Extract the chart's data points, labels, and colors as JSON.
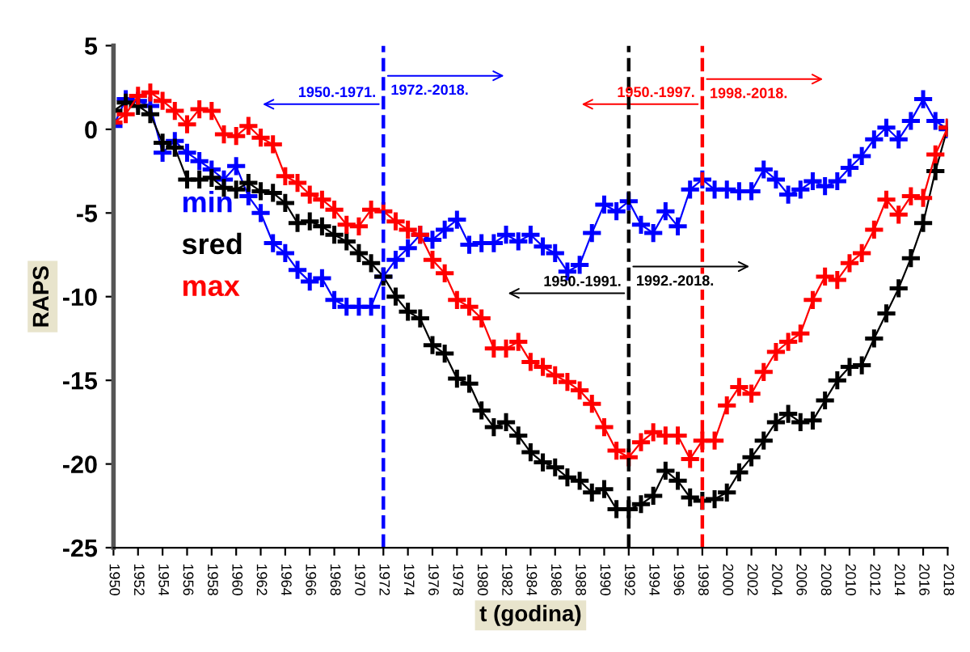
{
  "chart_data": {
    "type": "line",
    "xlabel": "t (godina)",
    "ylabel": "RAPS",
    "marker": "cross",
    "line_style": "solid",
    "legend": "center left",
    "grid": false,
    "xlim": [
      1950,
      2018
    ],
    "xticks": [
      1950,
      1952,
      1954,
      1956,
      1958,
      1960,
      1962,
      1964,
      1966,
      1968,
      1970,
      1972,
      1974,
      1976,
      1978,
      1980,
      1982,
      1984,
      1986,
      1988,
      1990,
      1992,
      1994,
      1996,
      1998,
      2000,
      2002,
      2004,
      2006,
      2008,
      2010,
      2012,
      2014,
      2016,
      2018
    ],
    "ylim": [
      -25,
      5
    ],
    "yticks": [
      -25,
      -20,
      -15,
      -10,
      -5,
      0,
      5
    ],
    "x": [
      1950,
      1951,
      1952,
      1953,
      1954,
      1955,
      1956,
      1957,
      1958,
      1959,
      1960,
      1961,
      1962,
      1963,
      1964,
      1965,
      1966,
      1967,
      1968,
      1969,
      1970,
      1971,
      1972,
      1973,
      1974,
      1975,
      1976,
      1977,
      1978,
      1979,
      1980,
      1981,
      1982,
      1983,
      1984,
      1985,
      1986,
      1987,
      1988,
      1989,
      1990,
      1991,
      1992,
      1993,
      1994,
      1995,
      1996,
      1997,
      1998,
      1999,
      2000,
      2001,
      2002,
      2003,
      2004,
      2005,
      2006,
      2007,
      2008,
      2009,
      2010,
      2011,
      2012,
      2013,
      2014,
      2015,
      2016,
      2017,
      2018
    ],
    "series": [
      {
        "name": "min",
        "color": "#0000ff",
        "values": [
          0.2,
          1.8,
          1.7,
          1.4,
          -1.4,
          -0.7,
          -1.4,
          -1.9,
          -2.4,
          -3.0,
          -2.2,
          -4.0,
          -5.0,
          -6.8,
          -7.4,
          -8.4,
          -9.1,
          -8.9,
          -10.2,
          -10.6,
          -10.6,
          -10.6,
          -8.8,
          -7.8,
          -7.1,
          -6.3,
          -6.6,
          -6.0,
          -5.4,
          -6.9,
          -6.8,
          -6.8,
          -6.3,
          -6.7,
          -6.3,
          -7.0,
          -7.4,
          -8.5,
          -8.1,
          -6.2,
          -4.5,
          -4.9,
          -4.3,
          -5.7,
          -6.2,
          -4.9,
          -5.8,
          -3.6,
          -3.0,
          -3.6,
          -3.6,
          -3.7,
          -3.7,
          -2.4,
          -3.0,
          -3.9,
          -3.6,
          -3.1,
          -3.4,
          -3.1,
          -2.3,
          -1.6,
          -0.6,
          0.1,
          -0.6,
          0.5,
          1.8,
          0.5,
          0.0
        ]
      },
      {
        "name": "sred",
        "color": "#000000",
        "values": [
          1.1,
          1.6,
          1.4,
          0.9,
          -0.8,
          -1.1,
          -3.0,
          -3.0,
          -2.9,
          -3.5,
          -3.6,
          -3.2,
          -3.7,
          -3.8,
          -4.4,
          -5.6,
          -5.5,
          -5.8,
          -6.3,
          -6.7,
          -7.4,
          -8.0,
          -8.8,
          -10.0,
          -10.9,
          -11.3,
          -12.9,
          -13.4,
          -14.9,
          -15.2,
          -16.8,
          -17.8,
          -17.5,
          -18.3,
          -19.3,
          -19.9,
          -20.2,
          -20.8,
          -21.0,
          -21.7,
          -21.5,
          -22.7,
          -22.7,
          -22.4,
          -21.9,
          -20.4,
          -21.0,
          -22.0,
          -22.2,
          -22.1,
          -21.7,
          -20.5,
          -19.6,
          -18.6,
          -17.5,
          -17.0,
          -17.5,
          -17.4,
          -16.2,
          -15.0,
          -14.2,
          -14.1,
          -12.5,
          -11.0,
          -9.5,
          -7.7,
          -5.6,
          -2.5,
          0.1
        ]
      },
      {
        "name": "max",
        "color": "#ff0000",
        "values": [
          0.4,
          0.9,
          2.0,
          2.2,
          1.7,
          1.1,
          0.3,
          1.2,
          1.1,
          -0.3,
          -0.4,
          0.2,
          -0.5,
          -0.9,
          -2.8,
          -3.2,
          -3.9,
          -4.2,
          -4.8,
          -5.7,
          -5.8,
          -4.8,
          -4.9,
          -5.5,
          -6.0,
          -6.3,
          -7.8,
          -8.6,
          -10.2,
          -10.6,
          -11.3,
          -13.1,
          -13.1,
          -12.7,
          -13.9,
          -14.2,
          -14.7,
          -15.1,
          -15.6,
          -16.4,
          -17.8,
          -19.2,
          -19.6,
          -18.7,
          -18.1,
          -18.3,
          -18.3,
          -19.7,
          -18.6,
          -18.6,
          -16.5,
          -15.4,
          -15.8,
          -14.5,
          -13.3,
          -12.7,
          -12.2,
          -10.2,
          -8.8,
          -9.0,
          -8.0,
          -7.4,
          -6.0,
          -4.2,
          -5.1,
          -4.0,
          -4.1,
          -1.5,
          0.1
        ]
      }
    ],
    "ref_lines": [
      {
        "axis": "x",
        "value": 1972,
        "color": "#0000ff",
        "line_style": "dashed"
      },
      {
        "axis": "x",
        "value": 1992,
        "color": "#000000",
        "line_style": "dashed"
      },
      {
        "axis": "x",
        "value": 1998,
        "color": "#ff0000",
        "line_style": "dashed"
      }
    ],
    "annotations": [
      "1950.-1971.",
      "1972.-2018.",
      "1950.-1991.",
      "1992.-2018.",
      "1950.-1997.",
      "1998.-2018."
    ]
  }
}
